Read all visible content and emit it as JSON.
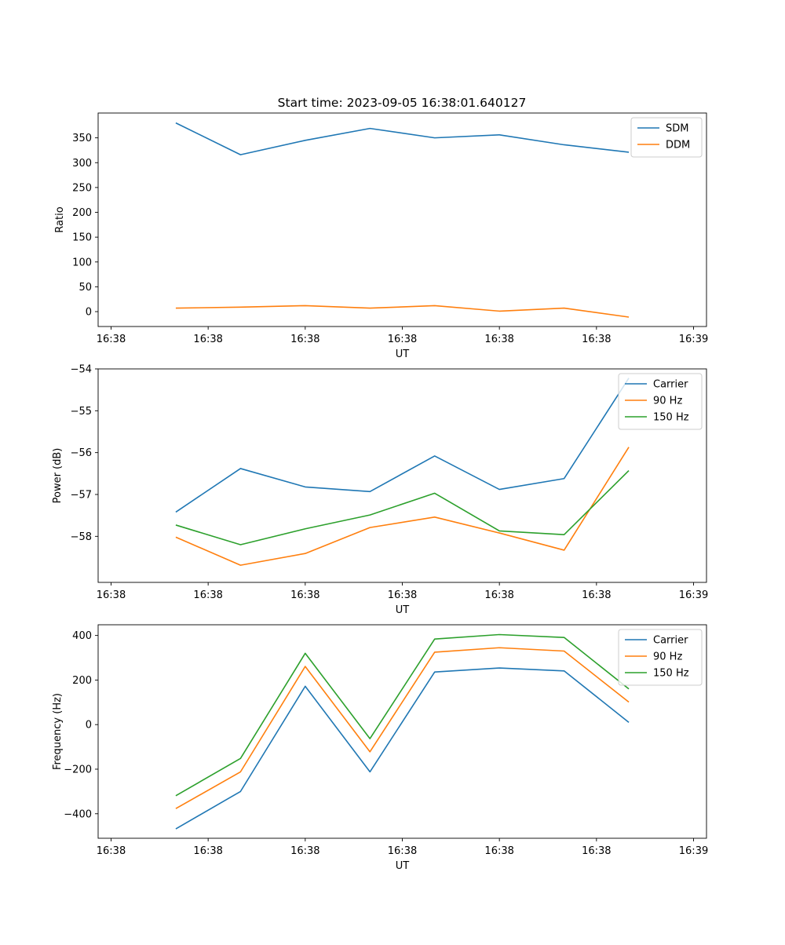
{
  "title": "Start time: 2023-09-05 16:38:01.640127",
  "colors": {
    "c0": "#1f77b4",
    "c1": "#ff7f0e",
    "c2": "#2ca02c"
  },
  "chart_data": [
    {
      "type": "line",
      "title": "Start time: 2023-09-05 16:38:01.640127",
      "xlabel": "UT",
      "ylabel": "Ratio",
      "x": [
        1,
        2,
        3,
        4,
        5,
        6,
        7,
        8
      ],
      "xlim": [
        -0.2,
        9.2
      ],
      "xticks": [
        0,
        1.5,
        3,
        4.5,
        6,
        7.5,
        9
      ],
      "xticklabels": [
        "16:38",
        "16:38",
        "16:38",
        "16:38",
        "16:38",
        "16:38",
        "16:39"
      ],
      "ylim": [
        -30,
        400
      ],
      "yticks": [
        0,
        50,
        100,
        150,
        200,
        250,
        300,
        350
      ],
      "yticklabels": [
        "0",
        "50",
        "100",
        "150",
        "200",
        "250",
        "300",
        "350"
      ],
      "legend": "top-right",
      "series": [
        {
          "name": "SDM",
          "color": "#1f77b4",
          "values": [
            380,
            316,
            345,
            369,
            350,
            356,
            336,
            321
          ]
        },
        {
          "name": "DDM",
          "color": "#ff7f0e",
          "values": [
            7,
            9,
            12,
            7,
            12,
            1,
            7,
            -11
          ]
        }
      ]
    },
    {
      "type": "line",
      "title": "",
      "xlabel": "UT",
      "ylabel": "Power (dB)",
      "x": [
        1,
        2,
        3,
        4,
        5,
        6,
        7,
        8
      ],
      "xlim": [
        -0.2,
        9.2
      ],
      "xticks": [
        0,
        1.5,
        3,
        4.5,
        6,
        7.5,
        9
      ],
      "xticklabels": [
        "16:38",
        "16:38",
        "16:38",
        "16:38",
        "16:38",
        "16:38",
        "16:39"
      ],
      "ylim": [
        -59.1,
        -54.0
      ],
      "yticks": [
        -58,
        -57,
        -56,
        -55,
        -54
      ],
      "yticklabels": [
        "−58",
        "−57",
        "−56",
        "−55",
        "−54"
      ],
      "legend": "top-right",
      "series": [
        {
          "name": "Carrier",
          "color": "#1f77b4",
          "values": [
            -57.42,
            -56.38,
            -56.82,
            -56.93,
            -56.08,
            -56.88,
            -56.62,
            -54.22
          ]
        },
        {
          "name": "90 Hz",
          "color": "#ff7f0e",
          "values": [
            -58.02,
            -58.69,
            -58.41,
            -57.79,
            -57.54,
            -57.92,
            -58.33,
            -55.87
          ]
        },
        {
          "name": "150 Hz",
          "color": "#2ca02c",
          "values": [
            -57.73,
            -58.2,
            -57.82,
            -57.49,
            -56.97,
            -57.87,
            -57.96,
            -56.43
          ]
        }
      ]
    },
    {
      "type": "line",
      "title": "",
      "xlabel": "UT",
      "ylabel": "Frequency (Hz)",
      "x": [
        1,
        2,
        3,
        4,
        5,
        6,
        7,
        8
      ],
      "xlim": [
        -0.2,
        9.2
      ],
      "xticks": [
        0,
        1.5,
        3,
        4.5,
        6,
        7.5,
        9
      ],
      "xticklabels": [
        "16:38",
        "16:38",
        "16:38",
        "16:38",
        "16:38",
        "16:38",
        "16:39"
      ],
      "ylim": [
        -510,
        448
      ],
      "yticks": [
        -400,
        -200,
        0,
        200,
        400
      ],
      "yticklabels": [
        "−400",
        "−200",
        "0",
        "200",
        "400"
      ],
      "legend": "top-right",
      "series": [
        {
          "name": "Carrier",
          "color": "#1f77b4",
          "values": [
            -468,
            -300,
            172,
            -212,
            236,
            254,
            241,
            10
          ]
        },
        {
          "name": "90 Hz",
          "color": "#ff7f0e",
          "values": [
            -377,
            -212,
            261,
            -122,
            325,
            345,
            330,
            101
          ]
        },
        {
          "name": "150 Hz",
          "color": "#2ca02c",
          "values": [
            -319,
            -152,
            320,
            -63,
            384,
            404,
            391,
            160
          ]
        }
      ]
    }
  ]
}
